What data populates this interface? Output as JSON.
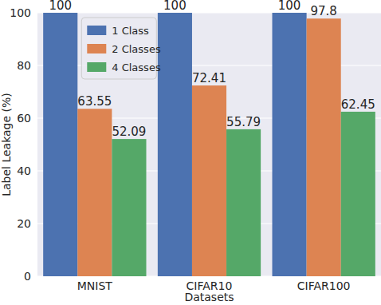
{
  "chart_data": {
    "type": "bar",
    "x_label": "Datasets",
    "y_label": "Label Leakage (%)",
    "categories": [
      "MNIST",
      "CIFAR10",
      "CIFAR100"
    ],
    "series": [
      {
        "name": "1 Class",
        "color": "#4c72b0",
        "values": [
          100,
          100,
          100
        ]
      },
      {
        "name": "2 Classes",
        "color": "#dd8452",
        "values": [
          63.55,
          72.41,
          97.8
        ]
      },
      {
        "name": "4 Classes",
        "color": "#55a868",
        "values": [
          52.09,
          55.79,
          62.45
        ]
      }
    ],
    "ylim": [
      0,
      100
    ],
    "yticks": [
      0,
      20,
      40,
      60,
      80,
      100
    ],
    "grid": true,
    "legend": "upper left",
    "data_labels": true
  }
}
